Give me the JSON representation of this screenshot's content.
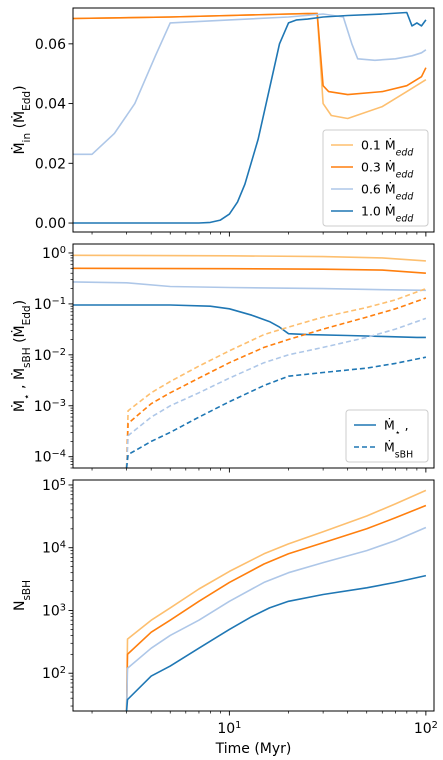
{
  "colors": {
    "c01": "#fdbf6f",
    "c03": "#ff7f0e",
    "c06": "#aec7e8",
    "c10": "#1f77b4"
  },
  "xaxis": {
    "label": "Time (Myr)",
    "scale": "log",
    "lim": [
      1.6,
      110
    ],
    "ticks": [
      10,
      100
    ],
    "ticklabels_base": [
      "10",
      "10"
    ],
    "ticklabels_exp": [
      "1",
      "2"
    ]
  },
  "chart_data": [
    {
      "type": "line",
      "ylabel": "Ṁin (ṀEdd)",
      "ylabel_parts": [
        "Ṁ",
        "in",
        " (Ṁ",
        "Edd",
        ")"
      ],
      "xscale": "log",
      "yscale": "linear",
      "ylim": [
        -0.003,
        0.072
      ],
      "yticks": [
        0.0,
        0.02,
        0.04,
        0.06
      ],
      "yticklabels": [
        "0.00",
        "0.02",
        "0.04",
        "0.06"
      ],
      "legend": {
        "position": "lower right",
        "entries": [
          {
            "label": "0.1 Ṁedd",
            "parts": [
              "0.1 ",
              "Ṁ",
              "edd"
            ],
            "color_key": "c01",
            "dash": false
          },
          {
            "label": "0.3 Ṁedd",
            "parts": [
              "0.3 ",
              "Ṁ",
              "edd"
            ],
            "color_key": "c03",
            "dash": false
          },
          {
            "label": "0.6 Ṁedd",
            "parts": [
              "0.6 ",
              "Ṁ",
              "edd"
            ],
            "color_key": "c06",
            "dash": false
          },
          {
            "label": "1.0 Ṁedd",
            "parts": [
              "1.0 ",
              "Ṁ",
              "edd"
            ],
            "color_key": "c10",
            "dash": false
          }
        ]
      },
      "series": [
        {
          "color_key": "c01",
          "dash": false,
          "x": [
            1.6,
            5,
            10,
            20,
            25,
            28,
            30,
            33,
            40,
            60,
            80,
            100
          ],
          "y": [
            0.0685,
            0.069,
            0.0695,
            0.07,
            0.0702,
            0.07,
            0.04,
            0.036,
            0.035,
            0.039,
            0.044,
            0.048
          ]
        },
        {
          "color_key": "c03",
          "dash": false,
          "x": [
            1.6,
            5,
            10,
            20,
            28,
            30,
            32,
            40,
            60,
            80,
            95,
            100
          ],
          "y": [
            0.0685,
            0.069,
            0.0695,
            0.07,
            0.0702,
            0.046,
            0.044,
            0.043,
            0.044,
            0.046,
            0.049,
            0.052
          ]
        },
        {
          "color_key": "c06",
          "dash": false,
          "x": [
            1.6,
            2.0,
            2.6,
            3.3,
            4.2,
            5.0,
            10,
            20,
            30,
            38,
            42,
            45,
            55,
            70,
            85,
            95,
            100
          ],
          "y": [
            0.023,
            0.023,
            0.03,
            0.04,
            0.056,
            0.067,
            0.068,
            0.069,
            0.07,
            0.069,
            0.06,
            0.055,
            0.0545,
            0.055,
            0.056,
            0.057,
            0.058
          ]
        },
        {
          "color_key": "c10",
          "dash": false,
          "x": [
            1.6,
            3,
            5,
            7,
            8,
            9,
            10,
            11,
            12,
            14,
            16,
            18,
            20,
            22,
            25,
            30,
            40,
            60,
            80,
            85,
            90,
            95,
            100
          ],
          "y": [
            0.0,
            0.0,
            0.0,
            0.0,
            0.0002,
            0.001,
            0.003,
            0.007,
            0.013,
            0.028,
            0.045,
            0.06,
            0.067,
            0.068,
            0.0683,
            0.069,
            0.0695,
            0.07,
            0.0705,
            0.066,
            0.067,
            0.066,
            0.068
          ]
        }
      ]
    },
    {
      "type": "line",
      "ylabel": "Ṁ⋆ , ṀsBH (ṀEdd)",
      "ylabel_parts": [
        "Ṁ",
        "⋆",
        " , ",
        "Ṁ",
        "sBH",
        " (Ṁ",
        "Edd",
        ")"
      ],
      "xscale": "log",
      "yscale": "log",
      "ylim": [
        6e-05,
        1.5
      ],
      "yticks": [
        0.0001,
        0.001,
        0.01,
        0.1,
        1
      ],
      "ytick_exps": [
        "−4",
        "−3",
        "−2",
        "−1",
        "0"
      ],
      "legend": {
        "position": "lower right",
        "entries": [
          {
            "label": "Ṁ⋆ ,",
            "parts": [
              "Ṁ",
              "⋆",
              " ,"
            ],
            "color_key": "c10",
            "dash": false
          },
          {
            "label": "ṀsBH",
            "parts": [
              "Ṁ",
              "sBH",
              ""
            ],
            "color_key": "c10",
            "dash": true
          }
        ]
      },
      "series": [
        {
          "name": "Ṁ⋆",
          "color_key": "c01",
          "dash": false,
          "x": [
            1.6,
            10,
            30,
            60,
            100
          ],
          "y": [
            0.9,
            0.88,
            0.85,
            0.8,
            0.7
          ]
        },
        {
          "name": "Ṁ⋆",
          "color_key": "c03",
          "dash": false,
          "x": [
            1.6,
            10,
            30,
            60,
            100
          ],
          "y": [
            0.5,
            0.49,
            0.48,
            0.46,
            0.4
          ]
        },
        {
          "name": "Ṁ⋆",
          "color_key": "c06",
          "dash": false,
          "x": [
            1.6,
            3,
            5,
            10,
            30,
            60,
            100
          ],
          "y": [
            0.27,
            0.26,
            0.22,
            0.21,
            0.2,
            0.19,
            0.185
          ]
        },
        {
          "name": "Ṁ⋆",
          "color_key": "c10",
          "dash": false,
          "x": [
            1.6,
            5,
            8,
            10,
            13,
            16,
            18,
            20,
            25,
            40,
            60,
            90,
            100
          ],
          "y": [
            0.095,
            0.095,
            0.09,
            0.08,
            0.06,
            0.045,
            0.035,
            0.026,
            0.025,
            0.024,
            0.023,
            0.022,
            0.022
          ]
        },
        {
          "name": "ṀsBH",
          "color_key": "c01",
          "dash": true,
          "x": [
            3,
            3.05,
            4,
            5,
            7,
            10,
            15,
            20,
            30,
            50,
            70,
            100
          ],
          "y": [
            6e-05,
            0.0008,
            0.0018,
            0.003,
            0.006,
            0.012,
            0.025,
            0.035,
            0.055,
            0.085,
            0.12,
            0.2
          ]
        },
        {
          "name": "ṀsBH",
          "color_key": "c03",
          "dash": true,
          "x": [
            3,
            3.05,
            4,
            5,
            7,
            10,
            15,
            20,
            30,
            50,
            70,
            100
          ],
          "y": [
            6e-05,
            0.00045,
            0.0011,
            0.0018,
            0.0035,
            0.007,
            0.014,
            0.02,
            0.032,
            0.055,
            0.08,
            0.13
          ]
        },
        {
          "name": "ṀsBH",
          "color_key": "c06",
          "dash": true,
          "x": [
            3,
            3.05,
            4,
            5,
            7,
            10,
            15,
            20,
            30,
            50,
            70,
            100
          ],
          "y": [
            6e-05,
            0.00026,
            0.0006,
            0.001,
            0.0018,
            0.0035,
            0.007,
            0.01,
            0.014,
            0.022,
            0.032,
            0.052
          ]
        },
        {
          "name": "ṀsBH",
          "color_key": "c10",
          "dash": true,
          "x": [
            3,
            3.05,
            4,
            5,
            7,
            10,
            15,
            20,
            30,
            50,
            70,
            100
          ],
          "y": [
            6e-05,
            0.00011,
            0.0002,
            0.0003,
            0.0006,
            0.0012,
            0.0025,
            0.0038,
            0.0045,
            0.0055,
            0.0068,
            0.009
          ]
        }
      ]
    },
    {
      "type": "line",
      "ylabel": "NsBH",
      "ylabel_parts": [
        "N",
        "sBH"
      ],
      "xscale": "log",
      "yscale": "log",
      "ylim": [
        25,
        120000
      ],
      "yticks": [
        100,
        1000,
        10000,
        100000
      ],
      "ytick_exps": [
        "2",
        "3",
        "4",
        "5"
      ],
      "series": [
        {
          "color_key": "c01",
          "dash": false,
          "x": [
            3,
            3.03,
            4,
            5,
            7,
            10,
            15,
            20,
            30,
            50,
            70,
            100
          ],
          "y": [
            25,
            350,
            700,
            1100,
            2200,
            4200,
            8000,
            11500,
            18000,
            32000,
            50000,
            82000
          ]
        },
        {
          "color_key": "c03",
          "dash": false,
          "x": [
            3,
            3.03,
            4,
            5,
            7,
            10,
            15,
            20,
            30,
            50,
            70,
            100
          ],
          "y": [
            25,
            200,
            450,
            700,
            1400,
            2800,
            5500,
            8000,
            12000,
            20000,
            30000,
            47000
          ]
        },
        {
          "color_key": "c06",
          "dash": false,
          "x": [
            3,
            3.03,
            4,
            5,
            7,
            10,
            15,
            20,
            30,
            50,
            70,
            100
          ],
          "y": [
            25,
            120,
            250,
            400,
            700,
            1400,
            2800,
            4000,
            5800,
            9000,
            13000,
            21000
          ]
        },
        {
          "color_key": "c10",
          "dash": false,
          "x": [
            3,
            3.03,
            4,
            5,
            7,
            10,
            13,
            16,
            20,
            30,
            50,
            70,
            100
          ],
          "y": [
            25,
            38,
            90,
            130,
            250,
            500,
            800,
            1100,
            1400,
            1800,
            2300,
            2800,
            3600
          ]
        }
      ]
    }
  ]
}
